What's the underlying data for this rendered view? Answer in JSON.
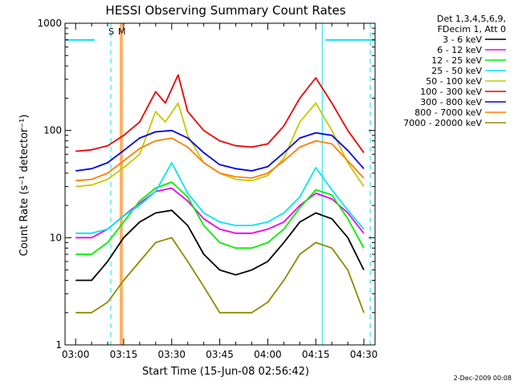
{
  "chart_data": {
    "type": "line",
    "title": "HESSI Observing Summary Count Rates",
    "xlabel": "Start Time (15-Jun-08 02:56:42)",
    "ylabel": "Count Rate (s⁻¹ detector⁻¹)",
    "yscale": "log",
    "ylim": [
      1,
      1000
    ],
    "xlim": [
      "02:56:42",
      "04:33:30"
    ],
    "x_ticks": [
      "03:00",
      "03:15",
      "03:30",
      "03:45",
      "04:00",
      "04:15",
      "04:30"
    ],
    "y_ticks": [
      "1",
      "10",
      "100",
      "1000"
    ],
    "legend_header": [
      "Det 1,3,4,5,6,9,",
      "FDecim 1, Att 0"
    ],
    "legend_position": "right",
    "series": [
      {
        "name": "3 - 6 keV",
        "color": "#000000",
        "points": [
          [
            "03:00",
            4
          ],
          [
            "03:05",
            4
          ],
          [
            "03:10",
            6
          ],
          [
            "03:15",
            10
          ],
          [
            "03:20",
            14
          ],
          [
            "03:25",
            17
          ],
          [
            "03:30",
            18
          ],
          [
            "03:35",
            13
          ],
          [
            "03:40",
            7
          ],
          [
            "03:45",
            5
          ],
          [
            "03:50",
            4.5
          ],
          [
            "03:55",
            5
          ],
          [
            "04:00",
            6
          ],
          [
            "04:05",
            9
          ],
          [
            "04:10",
            14
          ],
          [
            "04:15",
            17
          ],
          [
            "04:20",
            15
          ],
          [
            "04:25",
            10
          ],
          [
            "04:30",
            5
          ]
        ]
      },
      {
        "name": "6 - 12 keV",
        "color": "#ee00ee",
        "points": [
          [
            "03:00",
            10
          ],
          [
            "03:05",
            10
          ],
          [
            "03:10",
            12
          ],
          [
            "03:15",
            16
          ],
          [
            "03:20",
            21
          ],
          [
            "03:25",
            27
          ],
          [
            "03:30",
            29
          ],
          [
            "03:35",
            22
          ],
          [
            "03:40",
            15
          ],
          [
            "03:45",
            12
          ],
          [
            "03:50",
            11
          ],
          [
            "03:55",
            11
          ],
          [
            "04:00",
            12
          ],
          [
            "04:05",
            14
          ],
          [
            "04:10",
            20
          ],
          [
            "04:15",
            26
          ],
          [
            "04:20",
            23
          ],
          [
            "04:25",
            17
          ],
          [
            "04:30",
            11
          ]
        ]
      },
      {
        "name": "12 - 25 keV",
        "color": "#00ee00",
        "points": [
          [
            "03:00",
            7
          ],
          [
            "03:05",
            7
          ],
          [
            "03:10",
            9
          ],
          [
            "03:15",
            14
          ],
          [
            "03:20",
            22
          ],
          [
            "03:25",
            29
          ],
          [
            "03:30",
            33
          ],
          [
            "03:35",
            24
          ],
          [
            "03:40",
            13
          ],
          [
            "03:45",
            9
          ],
          [
            "03:50",
            8
          ],
          [
            "03:55",
            8
          ],
          [
            "04:00",
            9
          ],
          [
            "04:05",
            12
          ],
          [
            "04:10",
            19
          ],
          [
            "04:15",
            28
          ],
          [
            "04:20",
            25
          ],
          [
            "04:25",
            15
          ],
          [
            "04:30",
            8
          ]
        ]
      },
      {
        "name": "25 - 50 keV",
        "color": "#00e5ee",
        "points": [
          [
            "03:00",
            11
          ],
          [
            "03:05",
            11
          ],
          [
            "03:10",
            12
          ],
          [
            "03:15",
            16
          ],
          [
            "03:20",
            20
          ],
          [
            "03:25",
            27
          ],
          [
            "03:30",
            50
          ],
          [
            "03:35",
            26
          ],
          [
            "03:40",
            17
          ],
          [
            "03:45",
            14
          ],
          [
            "03:50",
            13
          ],
          [
            "03:55",
            13
          ],
          [
            "04:00",
            14
          ],
          [
            "04:05",
            17
          ],
          [
            "04:10",
            24
          ],
          [
            "04:15",
            45
          ],
          [
            "04:20",
            28
          ],
          [
            "04:25",
            18
          ],
          [
            "04:30",
            12
          ]
        ]
      },
      {
        "name": "50 - 100 keV",
        "color": "#c8c800",
        "points": [
          [
            "03:00",
            30
          ],
          [
            "03:05",
            31
          ],
          [
            "03:10",
            35
          ],
          [
            "03:15",
            45
          ],
          [
            "03:20",
            60
          ],
          [
            "03:25",
            150
          ],
          [
            "03:28",
            120
          ],
          [
            "03:32",
            180
          ],
          [
            "03:35",
            90
          ],
          [
            "03:40",
            50
          ],
          [
            "03:45",
            40
          ],
          [
            "03:50",
            35
          ],
          [
            "03:55",
            34
          ],
          [
            "04:00",
            38
          ],
          [
            "04:05",
            55
          ],
          [
            "04:10",
            120
          ],
          [
            "04:15",
            180
          ],
          [
            "04:20",
            100
          ],
          [
            "04:25",
            50
          ],
          [
            "04:30",
            30
          ]
        ]
      },
      {
        "name": "100 - 300 keV",
        "color": "#ee0000",
        "points": [
          [
            "03:00",
            64
          ],
          [
            "03:05",
            66
          ],
          [
            "03:10",
            72
          ],
          [
            "03:15",
            90
          ],
          [
            "03:20",
            120
          ],
          [
            "03:25",
            230
          ],
          [
            "03:28",
            180
          ],
          [
            "03:32",
            330
          ],
          [
            "03:35",
            150
          ],
          [
            "03:40",
            100
          ],
          [
            "03:45",
            80
          ],
          [
            "03:50",
            72
          ],
          [
            "03:55",
            70
          ],
          [
            "04:00",
            75
          ],
          [
            "04:05",
            110
          ],
          [
            "04:10",
            200
          ],
          [
            "04:15",
            310
          ],
          [
            "04:20",
            180
          ],
          [
            "04:25",
            100
          ],
          [
            "04:30",
            62
          ]
        ]
      },
      {
        "name": "300 - 800 keV",
        "color": "#0000ee",
        "points": [
          [
            "03:00",
            42
          ],
          [
            "03:05",
            44
          ],
          [
            "03:10",
            50
          ],
          [
            "03:15",
            65
          ],
          [
            "03:20",
            85
          ],
          [
            "03:25",
            97
          ],
          [
            "03:30",
            100
          ],
          [
            "03:35",
            85
          ],
          [
            "03:40",
            62
          ],
          [
            "03:45",
            48
          ],
          [
            "03:50",
            44
          ],
          [
            "03:55",
            42
          ],
          [
            "04:00",
            46
          ],
          [
            "04:05",
            62
          ],
          [
            "04:10",
            85
          ],
          [
            "04:15",
            95
          ],
          [
            "04:20",
            90
          ],
          [
            "04:25",
            65
          ],
          [
            "04:30",
            44
          ]
        ]
      },
      {
        "name": "800 - 7000 keV",
        "color": "#ff7f00",
        "points": [
          [
            "03:00",
            34
          ],
          [
            "03:05",
            35
          ],
          [
            "03:10",
            40
          ],
          [
            "03:15",
            52
          ],
          [
            "03:20",
            68
          ],
          [
            "03:25",
            80
          ],
          [
            "03:30",
            85
          ],
          [
            "03:35",
            70
          ],
          [
            "03:40",
            50
          ],
          [
            "03:45",
            40
          ],
          [
            "03:50",
            37
          ],
          [
            "03:55",
            36
          ],
          [
            "04:00",
            40
          ],
          [
            "04:05",
            52
          ],
          [
            "04:10",
            70
          ],
          [
            "04:15",
            80
          ],
          [
            "04:20",
            75
          ],
          [
            "04:25",
            52
          ],
          [
            "04:30",
            36
          ]
        ]
      },
      {
        "name": "7000 - 20000 keV",
        "color": "#8b8b00",
        "points": [
          [
            "03:00",
            2
          ],
          [
            "03:05",
            2
          ],
          [
            "03:10",
            2.5
          ],
          [
            "03:15",
            4
          ],
          [
            "03:20",
            6
          ],
          [
            "03:25",
            9
          ],
          [
            "03:30",
            10
          ],
          [
            "03:35",
            6
          ],
          [
            "03:40",
            3.5
          ],
          [
            "03:45",
            2
          ],
          [
            "03:50",
            2
          ],
          [
            "03:55",
            2
          ],
          [
            "04:00",
            2.5
          ],
          [
            "04:05",
            4
          ],
          [
            "04:10",
            7
          ],
          [
            "04:15",
            9
          ],
          [
            "04:20",
            8
          ],
          [
            "04:25",
            5
          ],
          [
            "04:30",
            2
          ]
        ]
      }
    ],
    "annotations": [
      "S",
      "M"
    ],
    "footer_date": "2-Dec-2009 00:08"
  }
}
